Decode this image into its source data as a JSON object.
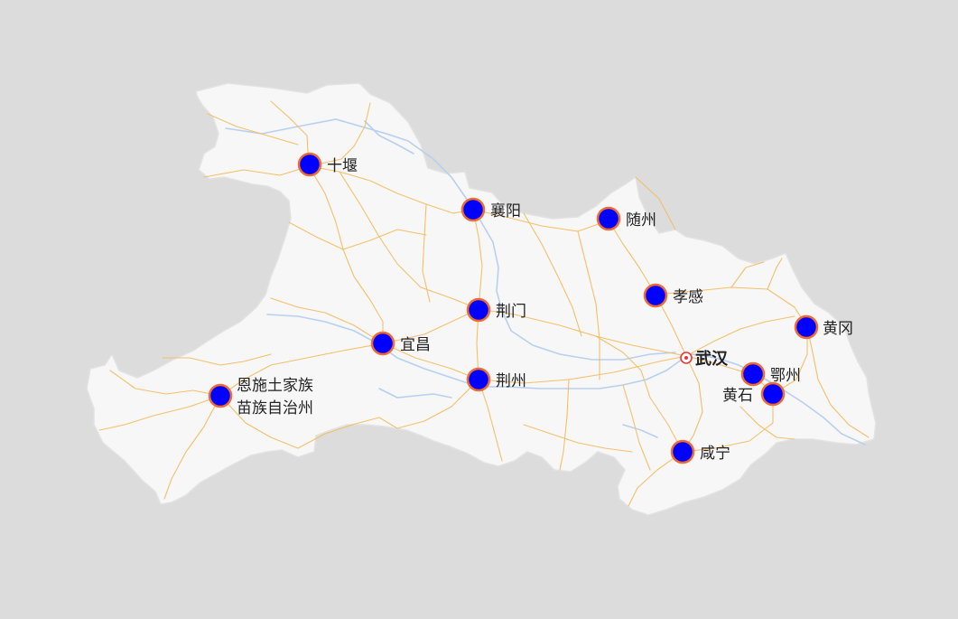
{
  "capital": {
    "name": "武汉"
  },
  "cities": [
    {
      "name": "十堰",
      "lines": [
        "十堰"
      ]
    },
    {
      "name": "襄阳",
      "lines": [
        "襄阳"
      ]
    },
    {
      "name": "随州",
      "lines": [
        "随州"
      ]
    },
    {
      "name": "孝感",
      "lines": [
        "孝感"
      ]
    },
    {
      "name": "黄冈",
      "lines": [
        "黄冈"
      ]
    },
    {
      "name": "荆门",
      "lines": [
        "荆门"
      ]
    },
    {
      "name": "宜昌",
      "lines": [
        "宜昌"
      ]
    },
    {
      "name": "荆州",
      "lines": [
        "荆州"
      ]
    },
    {
      "name": "鄂州",
      "lines": [
        "鄂州"
      ]
    },
    {
      "name": "黄石",
      "lines": [
        "黄石"
      ]
    },
    {
      "name": "咸宁",
      "lines": [
        "咸宁"
      ]
    },
    {
      "name": "恩施土家族苗族自治州",
      "lines": [
        "恩施土家族",
        "苗族自治州"
      ]
    }
  ],
  "colors": {
    "background": "#dcdcdc",
    "land": "#f7f7f8",
    "land_border": "#e2e2e2",
    "road": "#f5bd62",
    "river": "#b7d0ef",
    "marker_fill": "#0000ff",
    "marker_stroke": "#f26a30",
    "capital_icon": "#e53935"
  }
}
